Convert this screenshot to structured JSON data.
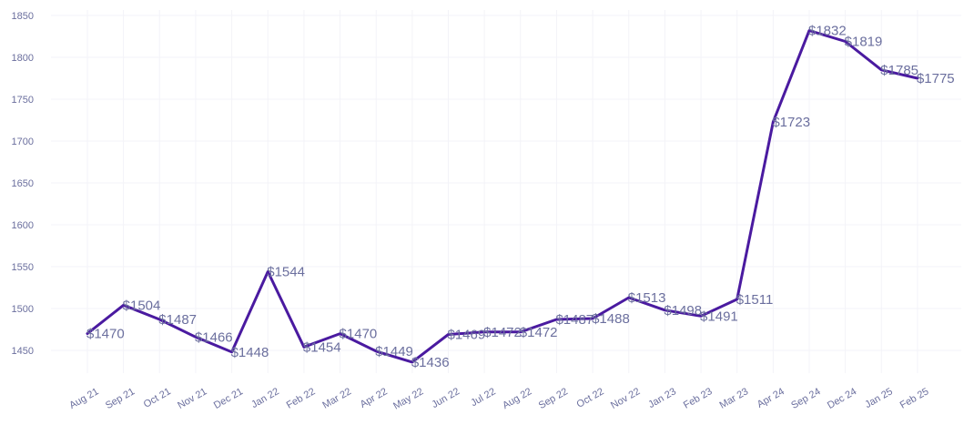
{
  "chart_data": {
    "type": "line",
    "title": "",
    "xlabel": "",
    "ylabel": "",
    "ylim": [
      1420,
      1850
    ],
    "yticks": [
      1450,
      1500,
      1550,
      1600,
      1650,
      1700,
      1750,
      1800,
      1850
    ],
    "ytick_labels": [
      "1450",
      "1500",
      "1550",
      "1600",
      "1650",
      "1700",
      "1750",
      "1800",
      "1850"
    ],
    "categories": [
      "Aug 21",
      "Sep 21",
      "Oct 21",
      "Nov 21",
      "Dec 21",
      "Jan 22",
      "Feb 22",
      "Mar 22",
      "Apr 22",
      "May 22",
      "Jun 22",
      "Jul 22",
      "Aug 22",
      "Sep 22",
      "Oct 22",
      "Nov 22",
      "Jan 23",
      "Feb 23",
      "Mar 23",
      "Apr 24",
      "Sep 24",
      "Dec 24",
      "Jan 25",
      "Feb 25"
    ],
    "values": [
      1470,
      1504,
      1487,
      1466,
      1448,
      1544,
      1454,
      1470,
      1449,
      1436,
      1469,
      1472,
      1472,
      1487,
      1488,
      1513,
      1498,
      1491,
      1511,
      1723,
      1832,
      1819,
      1785,
      1775
    ],
    "data_labels": [
      "$1470",
      "$1504",
      "$1487",
      "$1466",
      "$1448",
      "$1544",
      "$1454",
      "$1470",
      "$1449",
      "$1436",
      "$1469",
      "$1472",
      "$1472",
      "$1487",
      "$1488",
      "$1513",
      "$1498",
      "$1491",
      "$1511",
      "$1723",
      "$1832",
      "$1819",
      "$1785",
      "$1775"
    ],
    "grid": true,
    "legend": "none",
    "colors": {
      "line": "#4a1aa0",
      "text": "#6b6f9e",
      "grid": "#f3f3f8"
    }
  }
}
